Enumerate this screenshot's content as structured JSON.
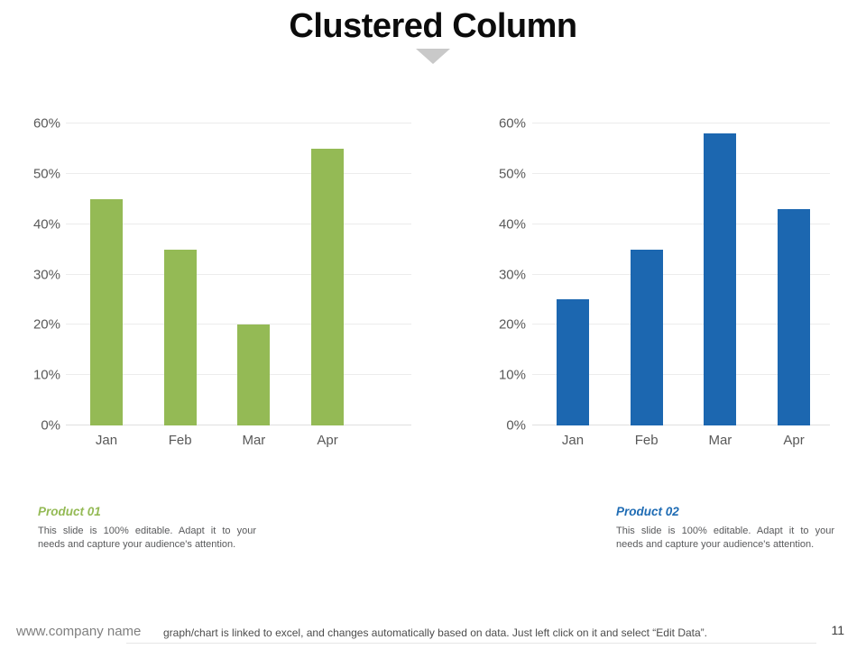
{
  "slide": {
    "title": "Clustered Column",
    "page_number": "11"
  },
  "footer": {
    "company": "www.company name",
    "note": "graph/chart is linked to excel,  and changes automatically based on data. Just left click on it and select “Edit Data”."
  },
  "products": [
    {
      "label": "Product 01",
      "color": "#94ba55",
      "description": "This slide is 100% editable. Adapt it to your needs and capture your audience's attention."
    },
    {
      "label": "Product 02",
      "color": "#1f6cb4",
      "description": "This slide is 100% editable. Adapt it to your needs and capture your audience's attention."
    }
  ],
  "chart_data": [
    {
      "type": "bar",
      "series_name": "Product 01",
      "categories": [
        "Jan",
        "Feb",
        "Mar",
        "Apr"
      ],
      "values": [
        45,
        35,
        20,
        55
      ],
      "unit": "%",
      "bar_color": "#94ba55",
      "ylim": [
        0,
        60
      ],
      "yticks": [
        0,
        10,
        20,
        30,
        40,
        50,
        60
      ],
      "ytick_labels": [
        "0%",
        "10%",
        "20%",
        "30%",
        "40%",
        "50%",
        "60%"
      ],
      "grid": true,
      "legend": "none"
    },
    {
      "type": "bar",
      "series_name": "Product 02",
      "categories": [
        "Jan",
        "Feb",
        "Mar",
        "Apr"
      ],
      "values": [
        25,
        35,
        58,
        43
      ],
      "unit": "%",
      "bar_color": "#1c67b0",
      "ylim": [
        0,
        60
      ],
      "yticks": [
        0,
        10,
        20,
        30,
        40,
        50,
        60
      ],
      "ytick_labels": [
        "0%",
        "10%",
        "20%",
        "30%",
        "40%",
        "50%",
        "60%"
      ],
      "grid": true,
      "legend": "none"
    }
  ],
  "decorations": {
    "triangle_color": "#c9c9c9"
  }
}
